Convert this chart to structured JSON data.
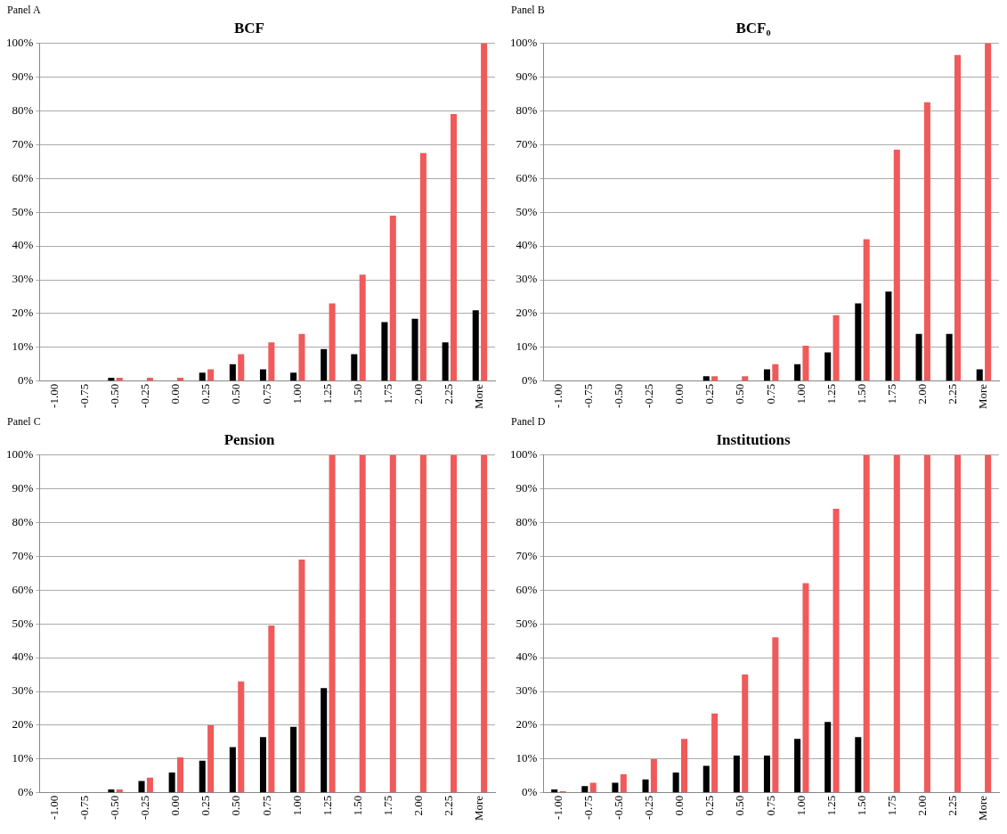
{
  "chart_data": [
    {
      "type": "bar",
      "subtitle": "Panel A",
      "title": "BCF",
      "categories": [
        "-1.00",
        "-0.75",
        "-0.50",
        "-0.25",
        "0.00",
        "0.25",
        "0.50",
        "0.75",
        "1.00",
        "1.25",
        "1.50",
        "1.75",
        "2.00",
        "2.25",
        "More"
      ],
      "series": [
        {
          "color": "#000000",
          "values": [
            0,
            0,
            1,
            0,
            0,
            2.5,
            5,
            3.5,
            2.5,
            9.5,
            8,
            17.5,
            18.5,
            11.5,
            21
          ]
        },
        {
          "color": "#f05a5a",
          "values": [
            0,
            0,
            1,
            1,
            1,
            3.5,
            8,
            11.5,
            14,
            23,
            31.5,
            49,
            67.5,
            79,
            100
          ]
        }
      ],
      "ylim": [
        0,
        100
      ],
      "yticks": [
        {
          "value": 0,
          "label": "0%"
        },
        {
          "value": 10,
          "label": "10%"
        },
        {
          "value": 20,
          "label": "20%"
        },
        {
          "value": 30,
          "label": "30%"
        },
        {
          "value": 40,
          "label": "40%"
        },
        {
          "value": 50,
          "label": "50%"
        },
        {
          "value": 60,
          "label": "60%"
        },
        {
          "value": 70,
          "label": "70%"
        },
        {
          "value": 80,
          "label": "80%"
        },
        {
          "value": 90,
          "label": "90%"
        },
        {
          "value": 100,
          "label": "100%"
        }
      ],
      "grid": "y",
      "legend": false
    },
    {
      "type": "bar",
      "subtitle": "Panel B",
      "title": "BCF₀",
      "categories": [
        "-1.00",
        "-0.75",
        "-0.50",
        "-0.25",
        "0.00",
        "0.25",
        "0.50",
        "0.75",
        "1.00",
        "1.25",
        "1.50",
        "1.75",
        "2.00",
        "2.25",
        "More"
      ],
      "series": [
        {
          "color": "#000000",
          "values": [
            0,
            0,
            0,
            0,
            0,
            1.5,
            0,
            3.5,
            5,
            8.5,
            23,
            26.5,
            14,
            14,
            3.5
          ]
        },
        {
          "color": "#f05a5a",
          "values": [
            0,
            0,
            0,
            0,
            0,
            1.5,
            1.5,
            5,
            10.5,
            19.5,
            42,
            68.5,
            82.5,
            96.5,
            100
          ]
        }
      ],
      "ylim": [
        0,
        100
      ],
      "yticks": [
        {
          "value": 0,
          "label": "0%"
        },
        {
          "value": 10,
          "label": "10%"
        },
        {
          "value": 20,
          "label": "20%"
        },
        {
          "value": 30,
          "label": "30%"
        },
        {
          "value": 40,
          "label": "40%"
        },
        {
          "value": 50,
          "label": "50%"
        },
        {
          "value": 60,
          "label": "60%"
        },
        {
          "value": 70,
          "label": "70%"
        },
        {
          "value": 80,
          "label": "80%"
        },
        {
          "value": 90,
          "label": "90%"
        },
        {
          "value": 100,
          "label": "100%"
        }
      ],
      "grid": "y",
      "legend": false
    },
    {
      "type": "bar",
      "subtitle": "Panel C",
      "title": "Pension",
      "categories": [
        "-1.00",
        "-0.75",
        "-0.50",
        "-0.25",
        "0.00",
        "0.25",
        "0.50",
        "0.75",
        "1.00",
        "1.25",
        "1.50",
        "1.75",
        "2.00",
        "2.25",
        "More"
      ],
      "series": [
        {
          "color": "#000000",
          "values": [
            0,
            0,
            1,
            3.5,
            6,
            9.5,
            13.5,
            16.5,
            19.5,
            31,
            0,
            0,
            0,
            0,
            0
          ]
        },
        {
          "color": "#f05a5a",
          "values": [
            0,
            0,
            1,
            4.5,
            10.5,
            20,
            33,
            49.5,
            69,
            100,
            100,
            100,
            100,
            100,
            100
          ]
        }
      ],
      "ylim": [
        0,
        100
      ],
      "yticks": [
        {
          "value": 0,
          "label": "0%"
        },
        {
          "value": 10,
          "label": "10%"
        },
        {
          "value": 20,
          "label": "20%"
        },
        {
          "value": 30,
          "label": "30%"
        },
        {
          "value": 40,
          "label": "40%"
        },
        {
          "value": 50,
          "label": "50%"
        },
        {
          "value": 60,
          "label": "60%"
        },
        {
          "value": 70,
          "label": "70%"
        },
        {
          "value": 80,
          "label": "80%"
        },
        {
          "value": 90,
          "label": "90%"
        },
        {
          "value": 100,
          "label": "100%"
        }
      ],
      "grid": "y",
      "legend": false
    },
    {
      "type": "bar",
      "subtitle": "Panel D",
      "title": "Institutions",
      "categories": [
        "-1.00",
        "-0.75",
        "-0.50",
        "-0.25",
        "0.00",
        "0.25",
        "0.50",
        "0.75",
        "1.00",
        "1.25",
        "1.50",
        "1.75",
        "2.00",
        "2.25",
        "More"
      ],
      "series": [
        {
          "color": "#000000",
          "values": [
            1,
            2,
            3,
            4,
            6,
            8,
            11,
            11,
            16,
            21,
            16.5,
            0,
            0,
            0,
            0
          ]
        },
        {
          "color": "#f05a5a",
          "values": [
            0.5,
            3,
            5.5,
            10,
            16,
            23.5,
            35,
            46,
            62,
            84,
            100,
            100,
            100,
            100,
            100
          ]
        }
      ],
      "ylim": [
        0,
        100
      ],
      "yticks": [
        {
          "value": 0,
          "label": "0%"
        },
        {
          "value": 10,
          "label": "10%"
        },
        {
          "value": 20,
          "label": "20%"
        },
        {
          "value": 30,
          "label": "30%"
        },
        {
          "value": 40,
          "label": "40%"
        },
        {
          "value": 50,
          "label": "50%"
        },
        {
          "value": 60,
          "label": "60%"
        },
        {
          "value": 70,
          "label": "70%"
        },
        {
          "value": 80,
          "label": "80%"
        },
        {
          "value": 90,
          "label": "90%"
        },
        {
          "value": 100,
          "label": "100%"
        }
      ],
      "grid": "y",
      "legend": false
    }
  ]
}
